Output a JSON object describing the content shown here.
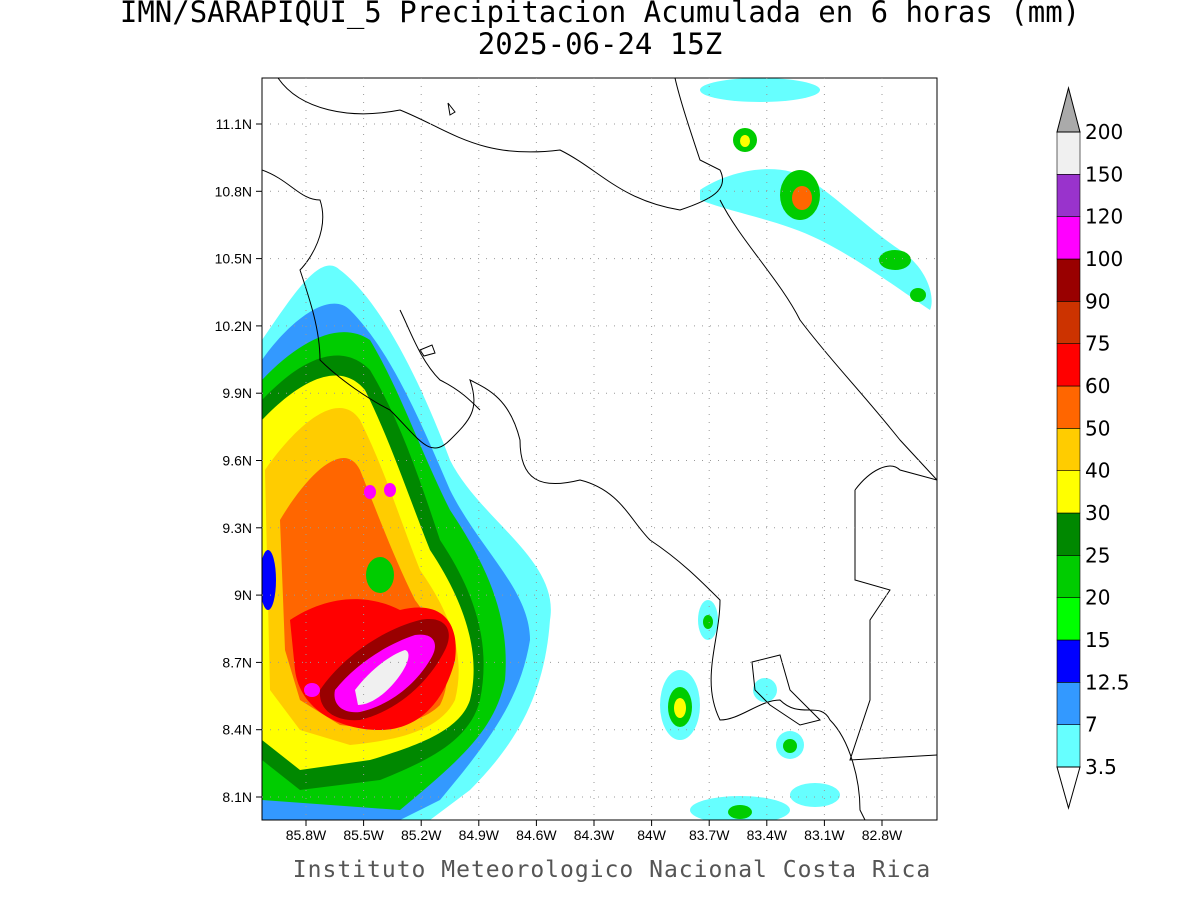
{
  "title": [
    "IMN/SARAPIQUI_5 Precipitacion Acumulada en 6 horas (mm)",
    "2025-06-24 15Z"
  ],
  "lon_ticks": [
    "85.8W",
    "85.5W",
    "85.2W",
    "84.9W",
    "84.6W",
    "84.3W",
    "84W",
    "83.7W",
    "83.4W",
    "83.1W",
    "82.8W"
  ],
  "lat_ticks": [
    "11.1N",
    "10.8N",
    "10.5N",
    "10.2N",
    "9.9N",
    "9.6N",
    "9.3N",
    "9N",
    "8.7N",
    "8.4N",
    "8.1N"
  ],
  "colorbar": {
    "levels": [
      3.5,
      7,
      12.5,
      15,
      20,
      25,
      30,
      40,
      50,
      60,
      75,
      90,
      100,
      120,
      150,
      200
    ],
    "colors": [
      "#66ffff",
      "#3399ff",
      "#0000ff",
      "#00ff00",
      "#00cc00",
      "#008800",
      "#ffff00",
      "#ffcc00",
      "#ff6600",
      "#ff0000",
      "#cc3300",
      "#990000",
      "#ff00ff",
      "#9933cc",
      "#f0f0f0"
    ],
    "under_color": "#ffffff",
    "over_color": "#aaaaaa"
  },
  "footer": "Instituto Meteorologico Nacional Costa Rica"
}
